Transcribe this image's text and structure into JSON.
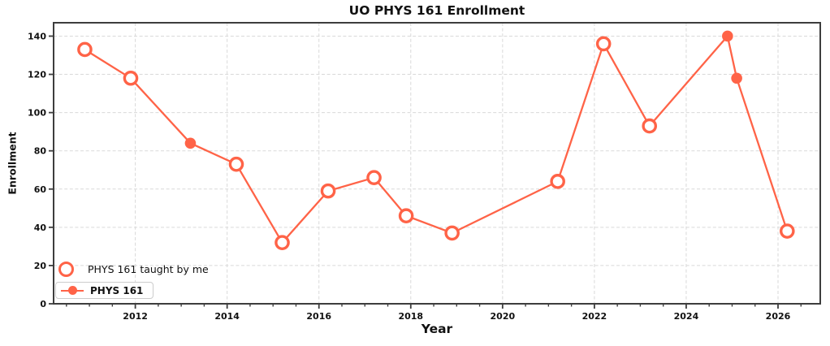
{
  "figure": {
    "title": "UO PHYS 161 Enrollment",
    "xlabel": "Year",
    "ylabel": "Enrollment"
  },
  "legend": {
    "position": "lower left",
    "items": [
      {
        "label": "PHYS 161 taught by me",
        "marker": "open-circle"
      },
      {
        "label": "PHYS 161",
        "marker": "filled-circle-with-line"
      }
    ]
  },
  "chart_data": {
    "type": "line",
    "title": "UO PHYS 161 Enrollment",
    "xlabel": "Year",
    "ylabel": "Enrollment",
    "xlim": [
      2010.22,
      2026.92
    ],
    "ylim": [
      0,
      147
    ],
    "x_ticks": [
      2012,
      2014,
      2016,
      2018,
      2020,
      2022,
      2024,
      2026
    ],
    "x_minor_tick_step": 0.5,
    "y_ticks": [
      0,
      20,
      40,
      60,
      80,
      100,
      120,
      140
    ],
    "grid": true,
    "grid_style": "dashed",
    "line_color": "#FF6347",
    "grid_color": "#d9d9d9",
    "spine_color": "#3d3d3d",
    "series_note": "single connected line through all points; open circles mark terms taught by me, filled circles other instructors",
    "points": [
      {
        "year": 2010.9,
        "enrollment": 133,
        "taught_by_me": true
      },
      {
        "year": 2011.9,
        "enrollment": 118,
        "taught_by_me": true
      },
      {
        "year": 2013.2,
        "enrollment": 84,
        "taught_by_me": false
      },
      {
        "year": 2014.2,
        "enrollment": 73,
        "taught_by_me": true
      },
      {
        "year": 2015.2,
        "enrollment": 32,
        "taught_by_me": true
      },
      {
        "year": 2016.2,
        "enrollment": 59,
        "taught_by_me": true
      },
      {
        "year": 2017.2,
        "enrollment": 66,
        "taught_by_me": true
      },
      {
        "year": 2017.9,
        "enrollment": 46,
        "taught_by_me": true
      },
      {
        "year": 2018.9,
        "enrollment": 37,
        "taught_by_me": true
      },
      {
        "year": 2021.2,
        "enrollment": 64,
        "taught_by_me": true
      },
      {
        "year": 2022.2,
        "enrollment": 136,
        "taught_by_me": true
      },
      {
        "year": 2023.2,
        "enrollment": 93,
        "taught_by_me": true
      },
      {
        "year": 2024.9,
        "enrollment": 140,
        "taught_by_me": false
      },
      {
        "year": 2025.1,
        "enrollment": 118,
        "taught_by_me": false
      },
      {
        "year": 2026.2,
        "enrollment": 38,
        "taught_by_me": true
      }
    ]
  }
}
